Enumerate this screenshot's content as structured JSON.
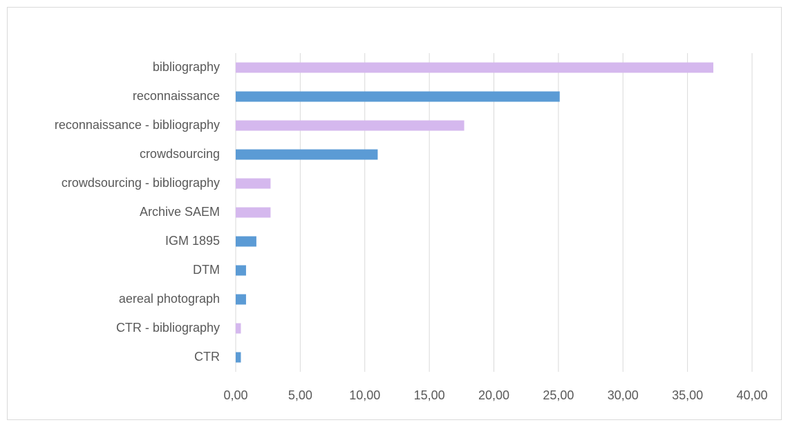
{
  "chart_data": {
    "type": "bar",
    "orientation": "horizontal",
    "categories": [
      "bibliography",
      "reconnaissance",
      "reconnaissance - bibliography",
      "crowdsourcing",
      "crowdsourcing - bibliography",
      "Archive SAEM",
      "IGM 1895",
      "DTM",
      "aereal photograph",
      "CTR - bibliography",
      "CTR"
    ],
    "values": [
      37.0,
      25.1,
      17.7,
      11.0,
      2.7,
      2.7,
      1.6,
      0.8,
      0.8,
      0.4,
      0.4
    ],
    "colors": [
      "#d5b8ee",
      "#5b9bd5",
      "#d5b8ee",
      "#5b9bd5",
      "#d5b8ee",
      "#d5b8ee",
      "#5b9bd5",
      "#5b9bd5",
      "#5b9bd5",
      "#d5b8ee",
      "#5b9bd5"
    ],
    "xlim": [
      0,
      40
    ],
    "xticks": [
      {
        "value": 0,
        "label": "0,00"
      },
      {
        "value": 5,
        "label": "5,00"
      },
      {
        "value": 10,
        "label": "10,00"
      },
      {
        "value": 15,
        "label": "15,00"
      },
      {
        "value": 20,
        "label": "20,00"
      },
      {
        "value": 25,
        "label": "25,00"
      },
      {
        "value": 30,
        "label": "30,00"
      },
      {
        "value": 35,
        "label": "35,00"
      },
      {
        "value": 40,
        "label": "40,00"
      }
    ],
    "grid": true
  }
}
